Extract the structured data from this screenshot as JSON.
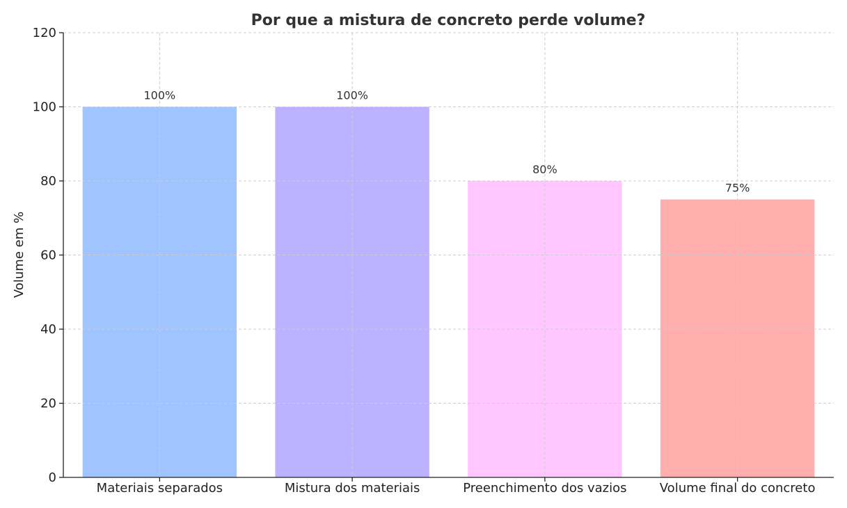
{
  "chart_data": {
    "type": "bar",
    "title": "Por que a mistura de concreto perde volume?",
    "xlabel": "",
    "ylabel": "Volume em %",
    "categories": [
      "Materiais separados",
      "Mistura dos materiais",
      "Preenchimento dos vazios",
      "Volume final do concreto"
    ],
    "values": [
      100,
      100,
      80,
      75
    ],
    "data_labels": [
      "100%",
      "100%",
      "80%",
      "75%"
    ],
    "colors": [
      "#a0c4ff",
      "#bdb2ff",
      "#ffc6ff",
      "#ffadad"
    ],
    "ylim": [
      0,
      120
    ],
    "yticks": [
      "0",
      "20",
      "40",
      "60",
      "80",
      "100",
      "120"
    ],
    "grid": true,
    "legend": "none"
  }
}
